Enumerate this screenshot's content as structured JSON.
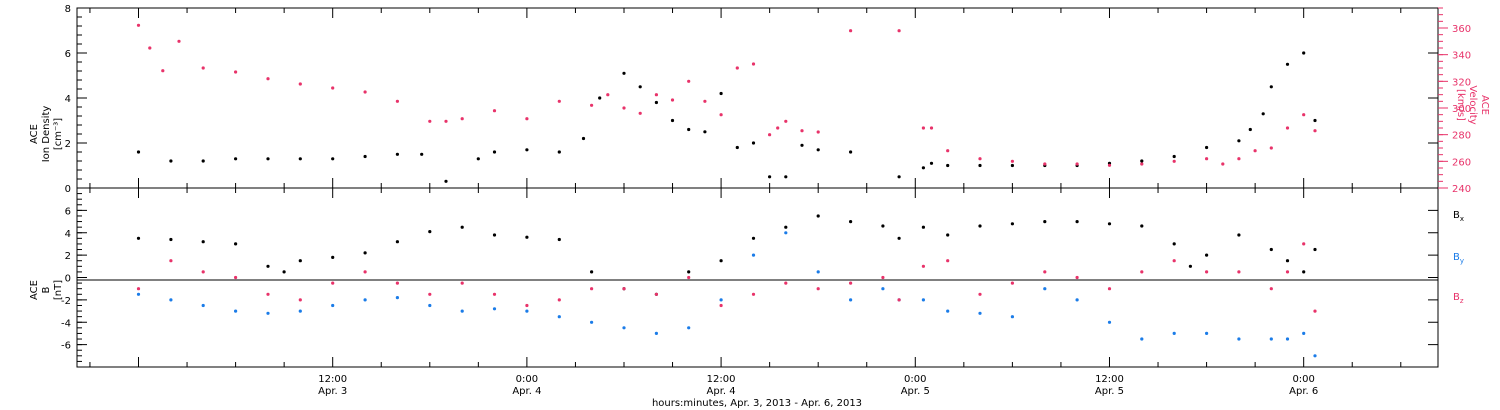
{
  "chart_data": [
    {
      "type": "scatter",
      "panel": "top",
      "left_axis": {
        "label_lines": [
          "ACE",
          "Ion Density",
          "[cm⁻³]"
        ],
        "range": [
          0,
          8
        ],
        "ticks": [
          "0",
          "2",
          "4",
          "6",
          "8"
        ],
        "color": "#000000"
      },
      "right_axis": {
        "label_lines": [
          "ACE",
          "Velocity",
          "[km/s]"
        ],
        "range": [
          240,
          375
        ],
        "ticks": [
          "240",
          "260",
          "280",
          "300",
          "320",
          "340",
          "360"
        ],
        "color": "#e8336a"
      },
      "series": [
        {
          "name": "Ion Density",
          "axis": "left",
          "color": "#000000",
          "x": [
            0,
            2,
            4,
            6,
            8,
            10,
            12,
            14,
            16,
            17.5,
            19,
            21,
            22,
            24,
            26,
            27.5,
            28.5,
            30,
            31,
            32,
            33,
            34,
            35,
            36,
            37,
            38,
            39,
            40,
            41,
            42,
            44,
            47,
            48.5,
            49,
            50,
            52,
            54,
            56,
            58,
            60,
            62,
            64,
            66,
            68,
            68.7,
            69.5,
            70,
            71,
            72,
            72.7
          ],
          "y": [
            1.6,
            1.2,
            1.2,
            1.3,
            1.3,
            1.3,
            1.3,
            1.4,
            1.5,
            1.5,
            0.3,
            1.3,
            1.6,
            1.7,
            1.6,
            2.2,
            4.0,
            5.1,
            4.5,
            3.8,
            3.0,
            2.6,
            2.5,
            4.2,
            1.8,
            2.0,
            0.5,
            0.5,
            1.9,
            1.7,
            1.6,
            0.5,
            0.9,
            1.1,
            1.0,
            1.0,
            1.0,
            1.0,
            1.0,
            1.1,
            1.2,
            1.4,
            1.8,
            2.1,
            2.6,
            3.3,
            4.5,
            5.5,
            6.0,
            3.0
          ]
        },
        {
          "name": "Velocity",
          "axis": "right",
          "color": "#e8336a",
          "x": [
            0,
            0.7,
            1.5,
            2.5,
            4,
            6,
            8,
            10,
            12,
            14,
            16,
            18,
            19,
            20,
            22,
            24,
            26,
            28,
            29,
            30,
            31,
            32,
            33,
            34,
            35,
            36,
            37,
            38,
            39,
            39.5,
            40,
            41,
            42,
            44,
            47,
            48.5,
            49,
            50,
            52,
            54,
            56,
            58,
            60,
            62,
            64,
            66,
            67,
            68,
            69,
            70,
            71,
            72,
            72.7
          ],
          "y": [
            362,
            345,
            328,
            350,
            330,
            327,
            322,
            318,
            315,
            312,
            305,
            290,
            290,
            292,
            298,
            292,
            305,
            302,
            310,
            300,
            296,
            310,
            306,
            320,
            305,
            295,
            330,
            333,
            280,
            285,
            290,
            283,
            282,
            358,
            358,
            285,
            285,
            268,
            262,
            260,
            258,
            258,
            257,
            258,
            260,
            262,
            258,
            262,
            268,
            270,
            285,
            295,
            283
          ]
        }
      ],
      "grid": false,
      "legend": "none"
    },
    {
      "type": "scatter",
      "panel": "bottom",
      "left_axis": {
        "label_lines": [
          "ACE",
          "B",
          "[nT]"
        ],
        "range": [
          -8,
          8
        ],
        "ticks": [
          "-6",
          "-4",
          "-2",
          "0",
          "2",
          "4",
          "6"
        ],
        "color": "#000000"
      },
      "zero_line": true,
      "series": [
        {
          "name": "Bx",
          "legend_label": "B",
          "legend_sub": "x",
          "color": "#000000",
          "x": [
            0,
            2,
            4,
            6,
            8,
            9,
            10,
            12,
            14,
            16,
            18,
            20,
            22,
            24,
            26,
            28,
            30,
            32,
            34,
            36,
            38,
            40,
            42,
            44,
            46,
            47,
            48.5,
            50,
            52,
            54,
            56,
            58,
            60,
            62,
            64,
            65,
            66,
            68,
            70,
            71,
            72,
            72.7
          ],
          "y": [
            3.5,
            3.4,
            3.2,
            3.0,
            1.0,
            0.5,
            1.5,
            1.8,
            2.2,
            3.2,
            4.1,
            4.5,
            3.8,
            3.6,
            3.4,
            0.5,
            -1.0,
            -1.5,
            0.5,
            1.5,
            3.5,
            4.5,
            5.5,
            5.0,
            4.6,
            3.5,
            4.5,
            3.8,
            4.6,
            4.8,
            5.0,
            5.0,
            4.8,
            4.6,
            3.0,
            1.0,
            2.0,
            3.8,
            2.5,
            1.5,
            0.5,
            2.5
          ]
        },
        {
          "name": "By",
          "legend_label": "B",
          "legend_sub": "y",
          "color": "#1b7ce8",
          "x": [
            0,
            2,
            4,
            6,
            8,
            10,
            12,
            14,
            16,
            18,
            20,
            22,
            24,
            26,
            28,
            30,
            32,
            34,
            36,
            38,
            40,
            42,
            44,
            46,
            47,
            48.5,
            50,
            52,
            54,
            56,
            58,
            60,
            62,
            64,
            66,
            68,
            70,
            71,
            72,
            72.7
          ],
          "y": [
            -1.5,
            -2.0,
            -2.5,
            -3.0,
            -3.2,
            -3.0,
            -2.5,
            -2.0,
            -1.8,
            -2.5,
            -3.0,
            -2.8,
            -3.0,
            -3.5,
            -4.0,
            -4.5,
            -5.0,
            -4.5,
            -2.0,
            2.0,
            4.0,
            0.5,
            -2.0,
            -1.0,
            -2.0,
            -2.0,
            -3.0,
            -3.2,
            -3.5,
            -1.0,
            -2.0,
            -4.0,
            -5.5,
            -5.0,
            -5.0,
            -5.5,
            -5.5,
            -5.5,
            -5.0,
            -7.0
          ]
        },
        {
          "name": "Bz",
          "legend_label": "B",
          "legend_sub": "z",
          "color": "#e8336a",
          "x": [
            0,
            2,
            4,
            6,
            8,
            10,
            12,
            14,
            16,
            18,
            20,
            22,
            24,
            26,
            28,
            30,
            32,
            34,
            36,
            38,
            40,
            42,
            44,
            46,
            47,
            48.5,
            50,
            52,
            54,
            56,
            58,
            60,
            62,
            64,
            66,
            68,
            70,
            71,
            72,
            72.7
          ],
          "y": [
            -1.0,
            1.5,
            0.5,
            0.0,
            -1.5,
            -2.0,
            -0.5,
            0.5,
            -0.5,
            -1.5,
            -0.5,
            -1.5,
            -2.5,
            -2.0,
            -1.0,
            -1.0,
            -1.5,
            0.0,
            -2.5,
            -1.5,
            -0.5,
            -1.0,
            -0.5,
            0.0,
            -2.0,
            1.0,
            1.5,
            -1.5,
            -0.5,
            0.5,
            0.0,
            -1.0,
            0.5,
            1.5,
            0.5,
            0.5,
            -1.0,
            0.5,
            3.0,
            -3.0
          ]
        }
      ],
      "grid": false,
      "legend": "right"
    }
  ],
  "x_axis": {
    "range_hours": [
      -3.8,
      80.3
    ],
    "major_ticks": [
      {
        "hour": 12,
        "line1": "12:00",
        "line2": "Apr. 3"
      },
      {
        "hour": 24,
        "line1": "0:00",
        "line2": "Apr. 4"
      },
      {
        "hour": 36,
        "line1": "12:00",
        "line2": "Apr. 4"
      },
      {
        "hour": 48,
        "line1": "0:00",
        "line2": "Apr. 5"
      },
      {
        "hour": 60,
        "line1": "12:00",
        "line2": "Apr. 5"
      },
      {
        "hour": 72,
        "line1": "0:00",
        "line2": "Apr. 6"
      }
    ],
    "label": "hours:minutes, Apr.  3, 2013 - Apr.  6, 2013"
  }
}
